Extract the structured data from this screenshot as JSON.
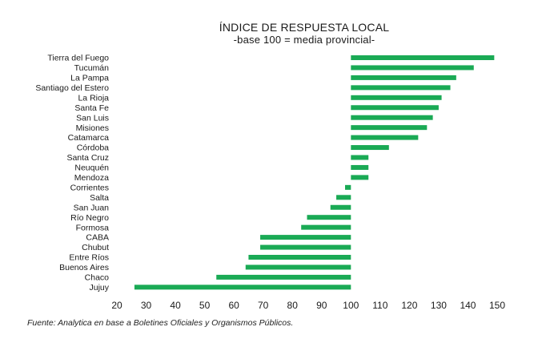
{
  "chart_data": {
    "type": "bar",
    "orientation": "horizontal",
    "title": "ÍNDICE DE RESPUESTA LOCAL",
    "subtitle": "-base 100 = media provincial-",
    "source": "Fuente: Analytica en base a Boletines Oficiales y Organismos Públicos.",
    "baseline": 100,
    "xlim": [
      20,
      150
    ],
    "xticks": [
      20,
      30,
      40,
      50,
      60,
      70,
      80,
      90,
      100,
      110,
      120,
      130,
      140,
      150
    ],
    "bar_color": "#1aaa55",
    "categories": [
      "Tierra del Fuego",
      "Tucumán",
      "La Pampa",
      "Santiago del Estero",
      "La Rioja",
      "Santa Fe",
      "San Luis",
      "Misiones",
      "Catamarca",
      "Córdoba",
      "Santa Cruz",
      "Neuquén",
      "Mendoza",
      "Corrientes",
      "Salta",
      "San Juan",
      "Río Negro",
      "Formosa",
      "CABA",
      "Chubut",
      "Entre Ríos",
      "Buenos Aires",
      "Chaco",
      "Jujuy"
    ],
    "values": [
      149,
      142,
      136,
      134,
      131,
      130,
      128,
      126,
      123,
      113,
      106,
      106,
      106,
      98,
      95,
      93,
      85,
      83,
      69,
      69,
      65,
      64,
      54,
      26
    ]
  }
}
